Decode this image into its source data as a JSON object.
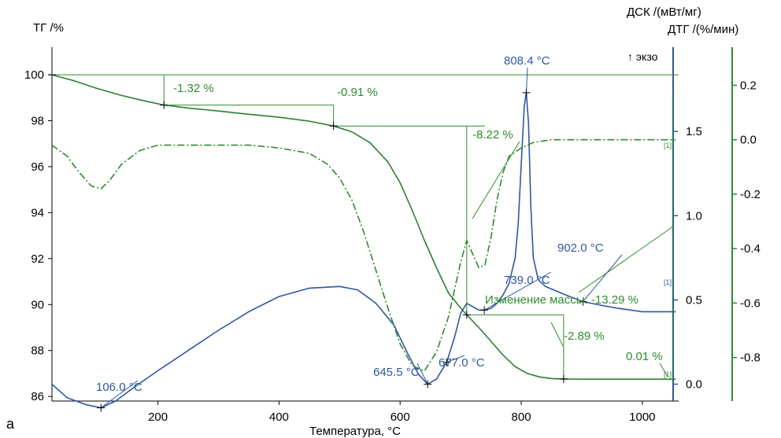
{
  "colors": {
    "tg": "#2e7d32",
    "dsc": "#2f57a0",
    "dtg": "#2e8b2e",
    "axis": "#000000",
    "ann_green": "#2e8b2e",
    "ann_blue": "#2f57a0"
  },
  "panel_label": "а",
  "chart_data": {
    "type": "line",
    "xlabel": "Температура, °C",
    "x_range": [
      25,
      1060
    ],
    "x_ticks": [
      200,
      400,
      600,
      800,
      1000
    ],
    "axes": {
      "left": {
        "label": "ТГ /%",
        "range": [
          85.8,
          101.2
        ],
        "ticks": [
          86,
          88,
          90,
          92,
          94,
          96,
          98,
          100
        ]
      },
      "right1": {
        "label": "ДСК /(мВт/мг)",
        "sublabel": "↑ экзо",
        "range": [
          -0.1,
          2.0
        ],
        "ticks": [
          0.0,
          0.5,
          1.0,
          1.5
        ]
      },
      "right2": {
        "label": "ДТГ /(%/мин)",
        "range": [
          -0.96,
          0.34
        ],
        "ticks": [
          -0.8,
          -0.6,
          -0.4,
          -0.2,
          0.0,
          0.2
        ]
      }
    },
    "series": [
      {
        "name": "ТГ",
        "axis": "left",
        "style": "solid",
        "x": [
          25,
          60,
          100,
          140,
          180,
          210,
          250,
          300,
          350,
          400,
          450,
          490,
          520,
          550,
          580,
          600,
          620,
          640,
          660,
          680,
          700,
          710,
          730,
          750,
          770,
          790,
          810,
          830,
          850,
          870,
          900,
          950,
          1000,
          1055
        ],
        "y": [
          100.0,
          99.75,
          99.4,
          99.1,
          98.85,
          98.68,
          98.55,
          98.42,
          98.28,
          98.15,
          97.98,
          97.77,
          97.52,
          97.05,
          96.2,
          95.3,
          94.1,
          92.8,
          91.6,
          90.5,
          89.85,
          89.55,
          89.0,
          88.4,
          87.8,
          87.3,
          87.0,
          86.85,
          86.78,
          86.76,
          86.75,
          86.75,
          86.75,
          86.75
        ]
      },
      {
        "name": "ДСК",
        "axis": "right1",
        "style": "solid",
        "x": [
          25,
          50,
          80,
          106,
          130,
          160,
          200,
          250,
          300,
          350,
          400,
          450,
          500,
          530,
          560,
          590,
          610,
          630,
          645.5,
          660,
          677,
          690,
          700,
          710,
          720,
          730,
          739,
          750,
          760,
          770,
          780,
          790,
          795,
          800,
          805,
          808.4,
          812,
          816,
          820,
          828,
          840,
          860,
          880,
          902,
          930,
          960,
          1000,
          1040,
          1055
        ],
        "y": [
          0.0,
          -0.08,
          -0.12,
          -0.14,
          -0.1,
          -0.02,
          0.08,
          0.2,
          0.32,
          0.43,
          0.52,
          0.57,
          0.58,
          0.56,
          0.48,
          0.35,
          0.2,
          0.06,
          0.0,
          0.03,
          0.13,
          0.28,
          0.42,
          0.48,
          0.46,
          0.44,
          0.44,
          0.45,
          0.48,
          0.53,
          0.6,
          0.75,
          0.95,
          1.3,
          1.65,
          1.73,
          1.55,
          1.05,
          0.75,
          0.62,
          0.58,
          0.55,
          0.52,
          0.49,
          0.47,
          0.45,
          0.43,
          0.43,
          0.43
        ]
      },
      {
        "name": "ДТГ",
        "axis": "right2",
        "style": "dashdot",
        "x": [
          25,
          50,
          70,
          90,
          106,
          120,
          140,
          170,
          200,
          250,
          300,
          350,
          400,
          450,
          480,
          500,
          520,
          540,
          560,
          580,
          600,
          620,
          640,
          660,
          680,
          700,
          710,
          720,
          730,
          740,
          750,
          760,
          770,
          780,
          800,
          820,
          850,
          900,
          950,
          1000,
          1055
        ],
        "y": [
          -0.02,
          -0.06,
          -0.12,
          -0.17,
          -0.18,
          -0.15,
          -0.09,
          -0.04,
          -0.02,
          -0.02,
          -0.02,
          -0.02,
          -0.03,
          -0.05,
          -0.09,
          -0.14,
          -0.22,
          -0.34,
          -0.48,
          -0.62,
          -0.75,
          -0.83,
          -0.85,
          -0.78,
          -0.65,
          -0.45,
          -0.37,
          -0.42,
          -0.47,
          -0.46,
          -0.36,
          -0.22,
          -0.12,
          -0.06,
          -0.03,
          -0.01,
          0.0,
          0.0,
          0.0,
          0.0,
          0.0
        ]
      }
    ],
    "annotations": {
      "steps_percent": [
        "-1.32 %",
        "-0.91 %",
        "-8.22 %",
        "-2.89 %",
        "0.01 %"
      ],
      "mass_change": "Изменение массы: -13.29 %",
      "dsc_peaks": [
        "106.0 °C",
        "645.5 °C",
        "677.0 °C",
        "739.0 °C",
        "808.4 °C",
        "902.0 °C"
      ],
      "markers": [
        "[1]",
        "[1]",
        "[1]"
      ]
    }
  }
}
